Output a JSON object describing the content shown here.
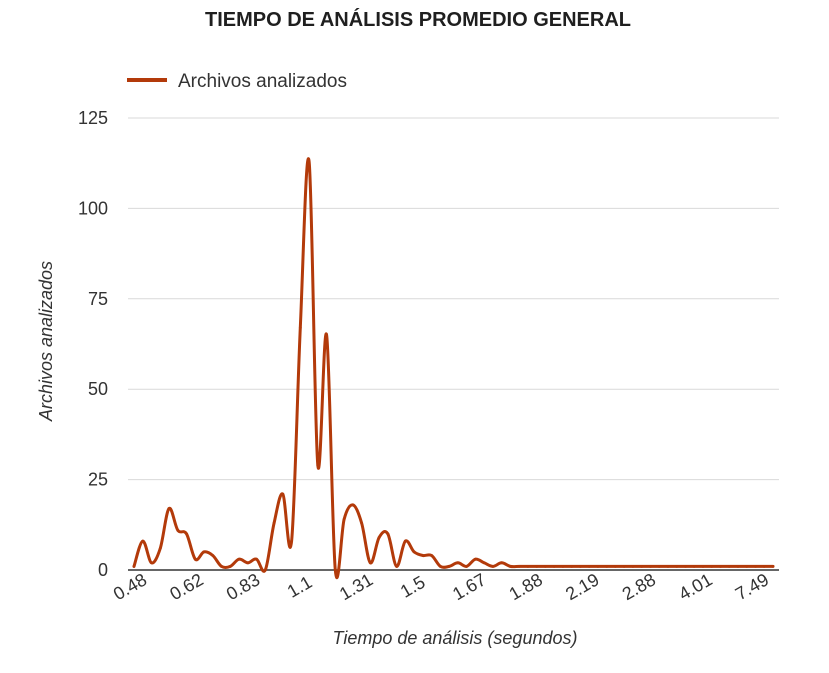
{
  "chart_data": {
    "type": "line",
    "title": "TIEMPO DE ANÁLISIS PROMEDIO GENERAL",
    "xlabel": "Tiempo de análisis (segundos)",
    "ylabel": "Archivos analizados",
    "ylim": [
      0,
      125
    ],
    "y_ticks": [
      0,
      25,
      50,
      75,
      100,
      125
    ],
    "x_tick_labels": [
      "0.48",
      "0.62",
      "0.83",
      "1.1",
      "1.31",
      "1.5",
      "1.67",
      "1.88",
      "2.19",
      "2.88",
      "4.01",
      "7.49"
    ],
    "grid": true,
    "legend_position": "top-left",
    "series": [
      {
        "name": "Archivos analizados",
        "color": "#b33a0a",
        "values": [
          1,
          8,
          2,
          6,
          17,
          11,
          10,
          3,
          5,
          4,
          1,
          1,
          3,
          2,
          3,
          0,
          13,
          21,
          8,
          67,
          113,
          29,
          65,
          0,
          14,
          18,
          13,
          2,
          9,
          10,
          1,
          8,
          5,
          4,
          4,
          1,
          1,
          2,
          1,
          3,
          2,
          1,
          2,
          1,
          1,
          1,
          1,
          1,
          1,
          1,
          1,
          1,
          1,
          1,
          1,
          1,
          1,
          1,
          1,
          1,
          1,
          1,
          1,
          1,
          1,
          1,
          1,
          1,
          1,
          1,
          1,
          1,
          1,
          1
        ]
      }
    ]
  }
}
